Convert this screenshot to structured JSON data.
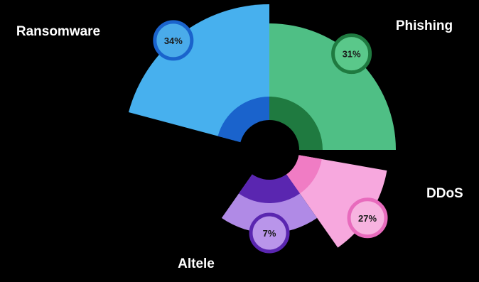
{
  "chart_data": {
    "type": "pie",
    "subtype": "polar-area",
    "title": "",
    "start_angle_deg": 0,
    "direction": "clockwise",
    "center_hole": true,
    "legend": "none",
    "categories": [
      "Phishing",
      "DDoS",
      "Altele",
      "Ransomware"
    ],
    "values": [
      31,
      27,
      7,
      34
    ],
    "labels": [
      "31%",
      "27%",
      "7%",
      "34%"
    ],
    "series": [
      {
        "category": "Phishing",
        "value": 31,
        "label": "31%",
        "color": "#4fbf85",
        "inner_color": "#1f7a40",
        "badge_fill": "#5ac88a",
        "badge_border": "#1f7a40"
      },
      {
        "category": "DDoS",
        "value": 27,
        "label": "27%",
        "color": "#f7a8de",
        "inner_color": "#f07cc4",
        "badge_fill": "#f7b3e0",
        "badge_border": "#e86bbd"
      },
      {
        "category": "Altele",
        "value": 7,
        "label": "7%",
        "color": "#b08ae6",
        "inner_color": "#5a26b0",
        "badge_fill": "#b995ea",
        "badge_border": "#5a26b0"
      },
      {
        "category": "Ransomware",
        "value": 34,
        "label": "34%",
        "color": "#47b0ee",
        "inner_color": "#1a63cc",
        "badge_fill": "#4aabea",
        "badge_border": "#1a63cc"
      }
    ]
  }
}
